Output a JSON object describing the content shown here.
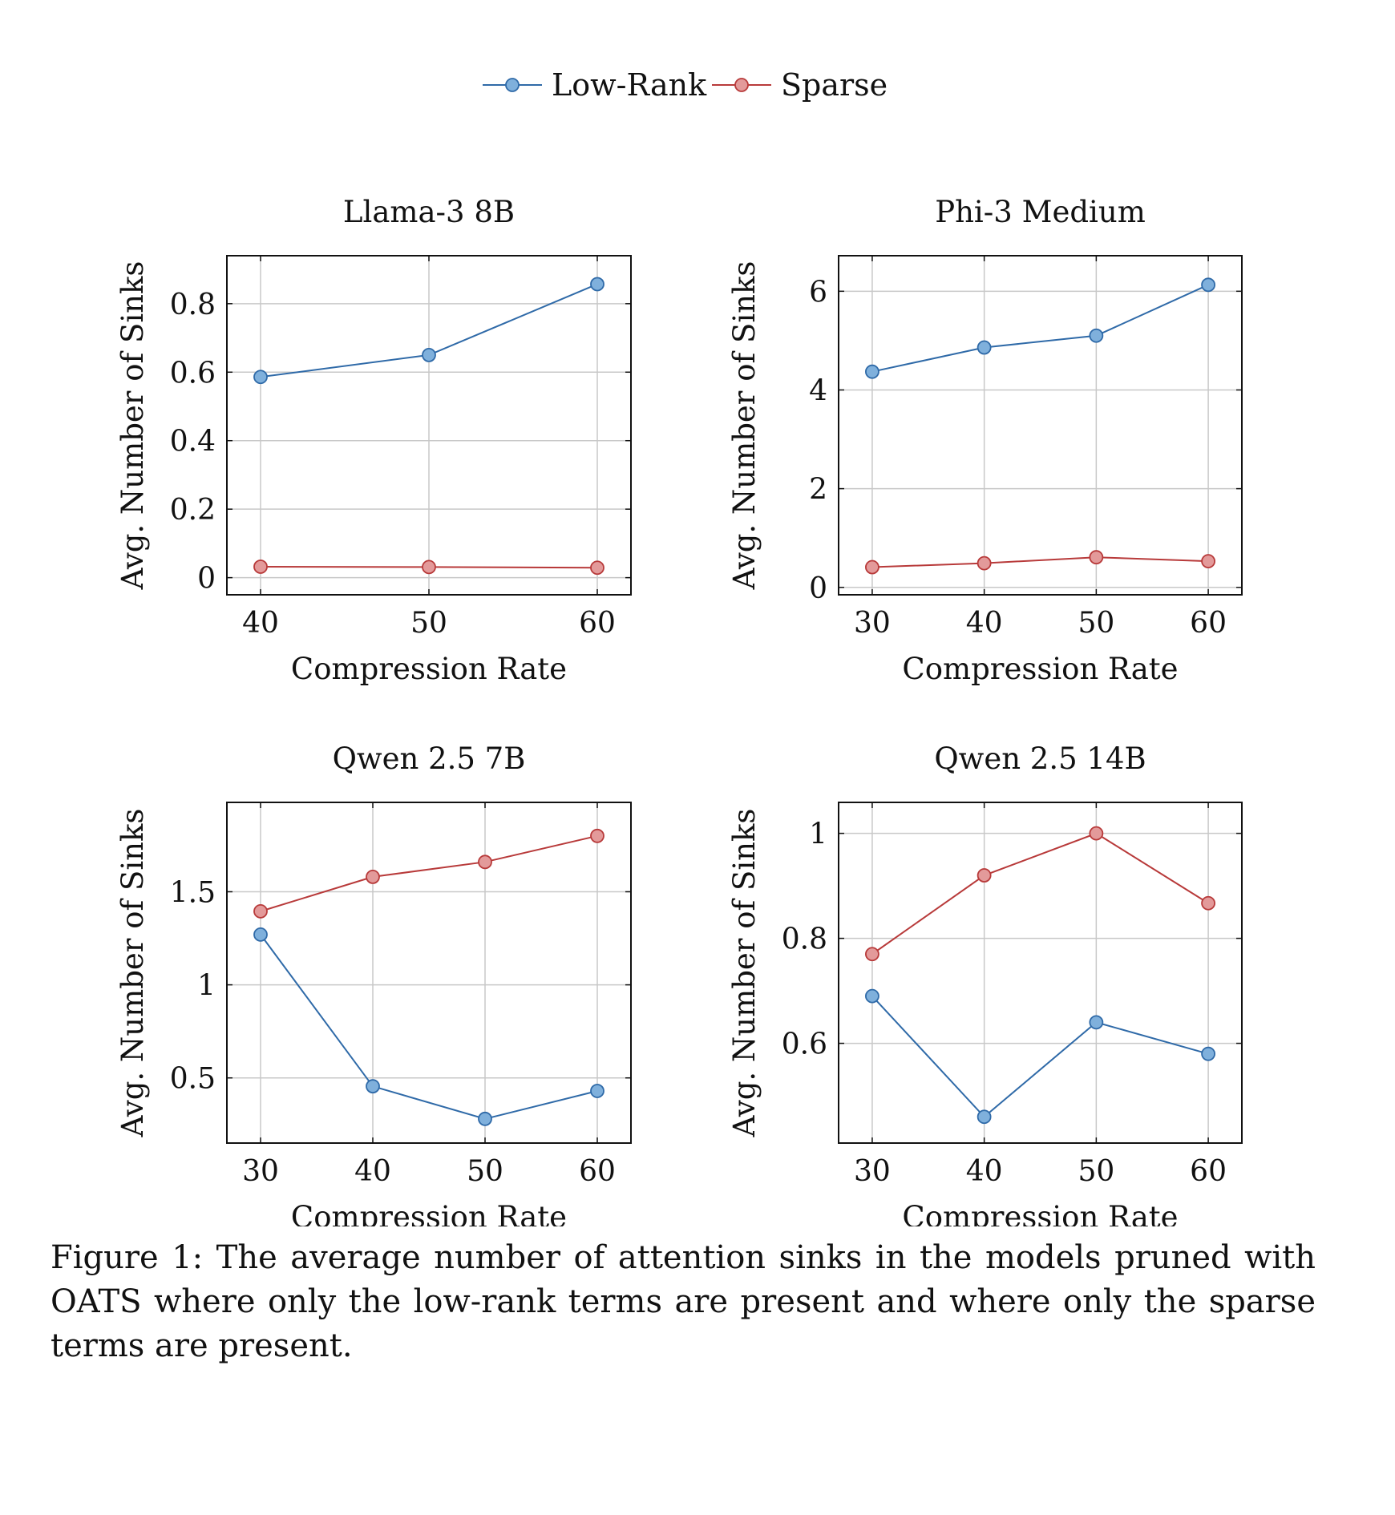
{
  "legend": {
    "entries": [
      {
        "name": "Low-Rank",
        "color": "#2f6aa8",
        "fill": "#7fb0dc"
      },
      {
        "name": "Sparse",
        "color": "#b83a3a",
        "fill": "#e39a9a"
      }
    ]
  },
  "chart_data": [
    {
      "type": "line",
      "title": "Llama-3 8B",
      "xlabel": "Compression Rate",
      "ylabel": "Avg. Number of Sinks",
      "x": [
        40,
        50,
        60
      ],
      "xticks": [
        40,
        50,
        60
      ],
      "yticks": [
        0,
        0.2,
        0.4,
        0.6,
        0.8
      ],
      "ytick_labels": [
        "0",
        "0.2",
        "0.4",
        "0.6",
        "0.8"
      ],
      "xlim": [
        38,
        62
      ],
      "ylim": [
        -0.05,
        0.94
      ],
      "grid": true,
      "series": [
        {
          "name": "Low-Rank",
          "values": [
            0.586,
            0.65,
            0.857
          ]
        },
        {
          "name": "Sparse",
          "values": [
            0.032,
            0.031,
            0.029
          ]
        }
      ]
    },
    {
      "type": "line",
      "title": "Phi-3 Medium",
      "xlabel": "Compression Rate",
      "ylabel": "Avg. Number of Sinks",
      "x": [
        30,
        40,
        50,
        60
      ],
      "xticks": [
        30,
        40,
        50,
        60
      ],
      "yticks": [
        0,
        2,
        4,
        6
      ],
      "ytick_labels": [
        "0",
        "2",
        "4",
        "6"
      ],
      "xlim": [
        27,
        63
      ],
      "ylim": [
        -0.15,
        6.72
      ],
      "grid": true,
      "series": [
        {
          "name": "Low-Rank",
          "values": [
            4.37,
            4.86,
            5.1,
            6.13
          ]
        },
        {
          "name": "Sparse",
          "values": [
            0.41,
            0.49,
            0.61,
            0.53
          ]
        }
      ]
    },
    {
      "type": "line",
      "title": "Qwen 2.5 7B",
      "xlabel": "Compression Rate",
      "ylabel": "Avg. Number of Sinks",
      "x": [
        30,
        40,
        50,
        60
      ],
      "xticks": [
        30,
        40,
        50,
        60
      ],
      "yticks": [
        0.5,
        1,
        1.5
      ],
      "ytick_labels": [
        "0.5",
        "1",
        "1.5"
      ],
      "xlim": [
        27,
        63
      ],
      "ylim": [
        0.15,
        1.98
      ],
      "grid": true,
      "series": [
        {
          "name": "Low-Rank",
          "values": [
            1.27,
            0.455,
            0.28,
            0.43
          ]
        },
        {
          "name": "Sparse",
          "values": [
            1.395,
            1.58,
            1.66,
            1.8
          ]
        }
      ]
    },
    {
      "type": "line",
      "title": "Qwen 2.5 14B",
      "xlabel": "Compression Rate",
      "ylabel": "Avg. Number of Sinks",
      "x": [
        30,
        40,
        50,
        60
      ],
      "xticks": [
        30,
        40,
        50,
        60
      ],
      "yticks": [
        0.6,
        0.8,
        1
      ],
      "ytick_labels": [
        "0.6",
        "0.8",
        "1"
      ],
      "xlim": [
        27,
        63
      ],
      "ylim": [
        0.41,
        1.059
      ],
      "grid": true,
      "series": [
        {
          "name": "Low-Rank",
          "values": [
            0.69,
            0.46,
            0.64,
            0.58
          ]
        },
        {
          "name": "Sparse",
          "values": [
            0.77,
            0.92,
            1.0,
            0.867
          ]
        }
      ]
    }
  ],
  "caption": "Figure 1:  The average number of attention sinks in the models pruned with OATS where only the low-rank terms are present and where only the sparse terms are present."
}
